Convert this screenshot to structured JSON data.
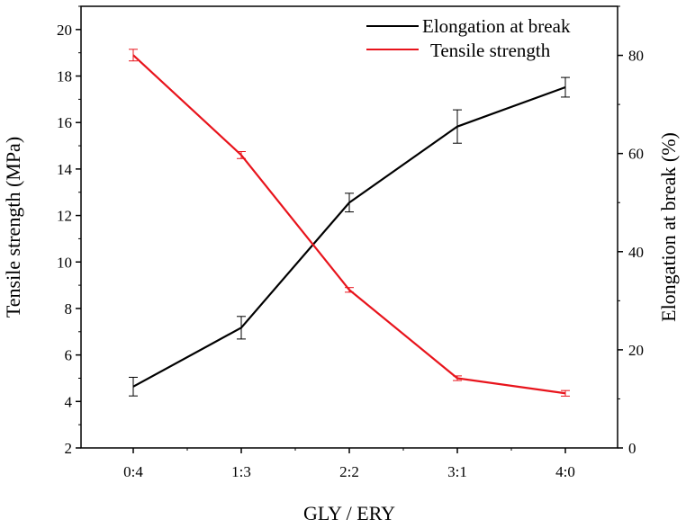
{
  "chart_data": {
    "type": "line",
    "categories": [
      "0:4",
      "1:3",
      "2:2",
      "3:1",
      "4:0"
    ],
    "xlabel": "GLY / ERY",
    "ylabel_left": "Tensile strength  (MPa)",
    "ylabel_right": "Elongation at break (%)",
    "ylim_left": [
      2,
      21
    ],
    "ylim_right": [
      0,
      90
    ],
    "yticks_left": [
      2,
      4,
      6,
      8,
      10,
      12,
      14,
      16,
      18,
      20
    ],
    "yticks_right": [
      0,
      20,
      40,
      60,
      80
    ],
    "legend_position": "top-right",
    "series": [
      {
        "name": "Elongation at break",
        "axis": "right",
        "color": "#000000",
        "values": [
          12.5,
          24.5,
          50.0,
          65.5,
          73.5
        ],
        "errors": [
          1.9,
          2.3,
          1.9,
          3.4,
          2.0
        ]
      },
      {
        "name": "Tensile strength",
        "axis": "left",
        "color": "#e8141c",
        "values": [
          18.9,
          14.6,
          8.8,
          5.0,
          4.35
        ],
        "errors": [
          0.25,
          0.15,
          0.1,
          0.1,
          0.12
        ]
      }
    ]
  }
}
